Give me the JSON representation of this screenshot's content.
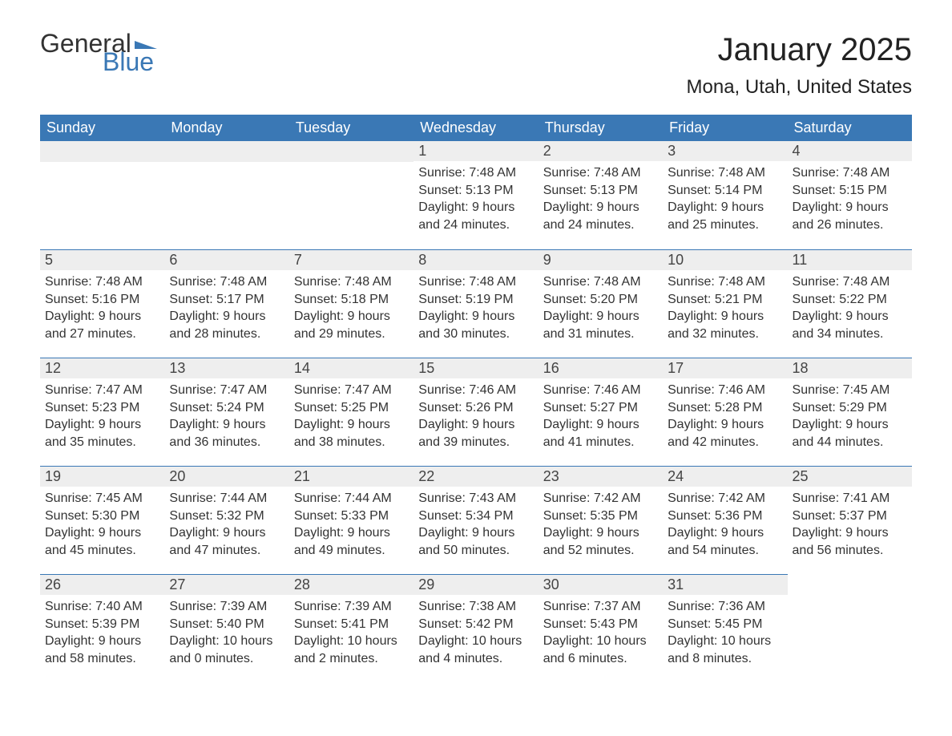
{
  "logo": {
    "text1": "General",
    "text2": "Blue",
    "shape_color": "#3a78b5",
    "text1_color": "#333333"
  },
  "title": "January 2025",
  "location": "Mona, Utah, United States",
  "colors": {
    "header_bg": "#3a78b5",
    "header_text": "#ffffff",
    "daynum_bg": "#eeeeee",
    "divider": "#3a78b5",
    "body_text": "#333333",
    "background": "#ffffff"
  },
  "weekdays": [
    "Sunday",
    "Monday",
    "Tuesday",
    "Wednesday",
    "Thursday",
    "Friday",
    "Saturday"
  ],
  "weeks": [
    [
      null,
      null,
      null,
      {
        "n": "1",
        "sr": "7:48 AM",
        "ss": "5:13 PM",
        "dl": "9 hours and 24 minutes."
      },
      {
        "n": "2",
        "sr": "7:48 AM",
        "ss": "5:13 PM",
        "dl": "9 hours and 24 minutes."
      },
      {
        "n": "3",
        "sr": "7:48 AM",
        "ss": "5:14 PM",
        "dl": "9 hours and 25 minutes."
      },
      {
        "n": "4",
        "sr": "7:48 AM",
        "ss": "5:15 PM",
        "dl": "9 hours and 26 minutes."
      }
    ],
    [
      {
        "n": "5",
        "sr": "7:48 AM",
        "ss": "5:16 PM",
        "dl": "9 hours and 27 minutes."
      },
      {
        "n": "6",
        "sr": "7:48 AM",
        "ss": "5:17 PM",
        "dl": "9 hours and 28 minutes."
      },
      {
        "n": "7",
        "sr": "7:48 AM",
        "ss": "5:18 PM",
        "dl": "9 hours and 29 minutes."
      },
      {
        "n": "8",
        "sr": "7:48 AM",
        "ss": "5:19 PM",
        "dl": "9 hours and 30 minutes."
      },
      {
        "n": "9",
        "sr": "7:48 AM",
        "ss": "5:20 PM",
        "dl": "9 hours and 31 minutes."
      },
      {
        "n": "10",
        "sr": "7:48 AM",
        "ss": "5:21 PM",
        "dl": "9 hours and 32 minutes."
      },
      {
        "n": "11",
        "sr": "7:48 AM",
        "ss": "5:22 PM",
        "dl": "9 hours and 34 minutes."
      }
    ],
    [
      {
        "n": "12",
        "sr": "7:47 AM",
        "ss": "5:23 PM",
        "dl": "9 hours and 35 minutes."
      },
      {
        "n": "13",
        "sr": "7:47 AM",
        "ss": "5:24 PM",
        "dl": "9 hours and 36 minutes."
      },
      {
        "n": "14",
        "sr": "7:47 AM",
        "ss": "5:25 PM",
        "dl": "9 hours and 38 minutes."
      },
      {
        "n": "15",
        "sr": "7:46 AM",
        "ss": "5:26 PM",
        "dl": "9 hours and 39 minutes."
      },
      {
        "n": "16",
        "sr": "7:46 AM",
        "ss": "5:27 PM",
        "dl": "9 hours and 41 minutes."
      },
      {
        "n": "17",
        "sr": "7:46 AM",
        "ss": "5:28 PM",
        "dl": "9 hours and 42 minutes."
      },
      {
        "n": "18",
        "sr": "7:45 AM",
        "ss": "5:29 PM",
        "dl": "9 hours and 44 minutes."
      }
    ],
    [
      {
        "n": "19",
        "sr": "7:45 AM",
        "ss": "5:30 PM",
        "dl": "9 hours and 45 minutes."
      },
      {
        "n": "20",
        "sr": "7:44 AM",
        "ss": "5:32 PM",
        "dl": "9 hours and 47 minutes."
      },
      {
        "n": "21",
        "sr": "7:44 AM",
        "ss": "5:33 PM",
        "dl": "9 hours and 49 minutes."
      },
      {
        "n": "22",
        "sr": "7:43 AM",
        "ss": "5:34 PM",
        "dl": "9 hours and 50 minutes."
      },
      {
        "n": "23",
        "sr": "7:42 AM",
        "ss": "5:35 PM",
        "dl": "9 hours and 52 minutes."
      },
      {
        "n": "24",
        "sr": "7:42 AM",
        "ss": "5:36 PM",
        "dl": "9 hours and 54 minutes."
      },
      {
        "n": "25",
        "sr": "7:41 AM",
        "ss": "5:37 PM",
        "dl": "9 hours and 56 minutes."
      }
    ],
    [
      {
        "n": "26",
        "sr": "7:40 AM",
        "ss": "5:39 PM",
        "dl": "9 hours and 58 minutes."
      },
      {
        "n": "27",
        "sr": "7:39 AM",
        "ss": "5:40 PM",
        "dl": "10 hours and 0 minutes."
      },
      {
        "n": "28",
        "sr": "7:39 AM",
        "ss": "5:41 PM",
        "dl": "10 hours and 2 minutes."
      },
      {
        "n": "29",
        "sr": "7:38 AM",
        "ss": "5:42 PM",
        "dl": "10 hours and 4 minutes."
      },
      {
        "n": "30",
        "sr": "7:37 AM",
        "ss": "5:43 PM",
        "dl": "10 hours and 6 minutes."
      },
      {
        "n": "31",
        "sr": "7:36 AM",
        "ss": "5:45 PM",
        "dl": "10 hours and 8 minutes."
      },
      null
    ]
  ],
  "labels": {
    "sunrise": "Sunrise: ",
    "sunset": "Sunset: ",
    "daylight": "Daylight: "
  }
}
